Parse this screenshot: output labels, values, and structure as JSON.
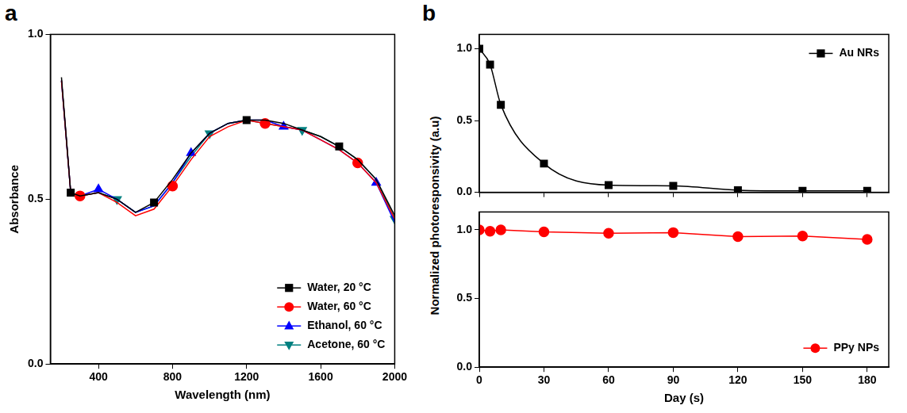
{
  "chart_data": [
    {
      "panel": "a",
      "type": "line",
      "xlabel": "Wavelength (nm)",
      "ylabel": "Absorbance",
      "x": [
        200,
        250,
        300,
        400,
        500,
        600,
        700,
        800,
        900,
        1000,
        1100,
        1200,
        1300,
        1400,
        1500,
        1600,
        1700,
        1800,
        1900,
        2000
      ],
      "series": [
        {
          "name": "Water, 20 °C",
          "color": "#000000",
          "marker": "square",
          "values": [
            0.87,
            0.52,
            0.51,
            0.52,
            0.5,
            0.46,
            0.49,
            0.56,
            0.64,
            0.7,
            0.73,
            0.74,
            0.74,
            0.73,
            0.71,
            0.69,
            0.66,
            0.62,
            0.56,
            0.45
          ]
        },
        {
          "name": "Water, 60 °C",
          "color": "#ff0000",
          "marker": "circle",
          "values": [
            0.86,
            0.52,
            0.51,
            0.52,
            0.49,
            0.45,
            0.47,
            0.54,
            0.62,
            0.69,
            0.72,
            0.74,
            0.73,
            0.72,
            0.71,
            0.68,
            0.65,
            0.61,
            0.55,
            0.44
          ]
        },
        {
          "name": "Ethanol, 60 °C",
          "color": "#0000ff",
          "marker": "triangle",
          "values": [
            0.86,
            0.52,
            0.51,
            0.53,
            0.5,
            0.46,
            0.48,
            0.55,
            0.64,
            0.7,
            0.73,
            0.74,
            0.74,
            0.72,
            0.71,
            0.68,
            0.65,
            0.61,
            0.55,
            0.43
          ]
        },
        {
          "name": "Acetone, 60 °C",
          "color": "#008080",
          "marker": "triangle_down",
          "values": [
            0.86,
            0.52,
            0.51,
            0.52,
            0.5,
            0.46,
            0.48,
            0.55,
            0.63,
            0.7,
            0.73,
            0.74,
            0.73,
            0.72,
            0.71,
            0.69,
            0.66,
            0.62,
            0.56,
            0.44
          ]
        }
      ],
      "xlim": [
        140,
        2000
      ],
      "xticks": [
        400,
        800,
        1200,
        1600,
        2000
      ],
      "ylim": [
        0,
        1
      ],
      "yticks": [
        {
          "value": 0,
          "label": "0.0"
        },
        {
          "value": 0.5,
          "label": "0.5"
        },
        {
          "value": 1,
          "label": "1.0"
        }
      ],
      "legend": "lower right",
      "grid": false
    },
    {
      "panel": "b",
      "type": "line",
      "ylabel": "Normalized photoresponsivity (a.u)",
      "x": [
        0,
        5,
        10,
        30,
        60,
        90,
        120,
        150,
        180
      ],
      "series": [
        {
          "name": "Au NRs",
          "color": "#000000",
          "marker": "square",
          "line_style": "smooth",
          "values": [
            1.0,
            0.89,
            0.61,
            0.2,
            0.05,
            0.045,
            0.015,
            0.01,
            0.01
          ]
        }
      ],
      "xlim": [
        0,
        190
      ],
      "xticks": [
        0,
        30,
        60,
        90,
        120,
        150,
        180
      ],
      "ylim": [
        0,
        1.1
      ],
      "yticks": [
        {
          "value": 0,
          "label": "0.0"
        },
        {
          "value": 0.5,
          "label": "0.5"
        },
        {
          "value": 1,
          "label": "1.0"
        }
      ],
      "tick_labels": "y",
      "legend": "upper right",
      "grid": false
    },
    {
      "type": "line",
      "xlabel": "Day (s)",
      "x": [
        0,
        5,
        10,
        30,
        60,
        90,
        120,
        150,
        180
      ],
      "series": [
        {
          "name": "PPy NPs",
          "color": "#ff0000",
          "marker": "circle",
          "line_style": "solid",
          "values": [
            1.0,
            0.99,
            1.0,
            0.985,
            0.975,
            0.98,
            0.95,
            0.955,
            0.93
          ]
        }
      ],
      "xlim": [
        0,
        190
      ],
      "xticks": [
        0,
        30,
        60,
        90,
        120,
        150,
        180
      ],
      "ylim": [
        0,
        1.13
      ],
      "yticks": [
        {
          "value": 0,
          "label": "0.0"
        },
        {
          "value": 0.5,
          "label": "0.5"
        },
        {
          "value": 1,
          "label": "1.0"
        }
      ],
      "legend": "lower right",
      "grid": false
    }
  ]
}
